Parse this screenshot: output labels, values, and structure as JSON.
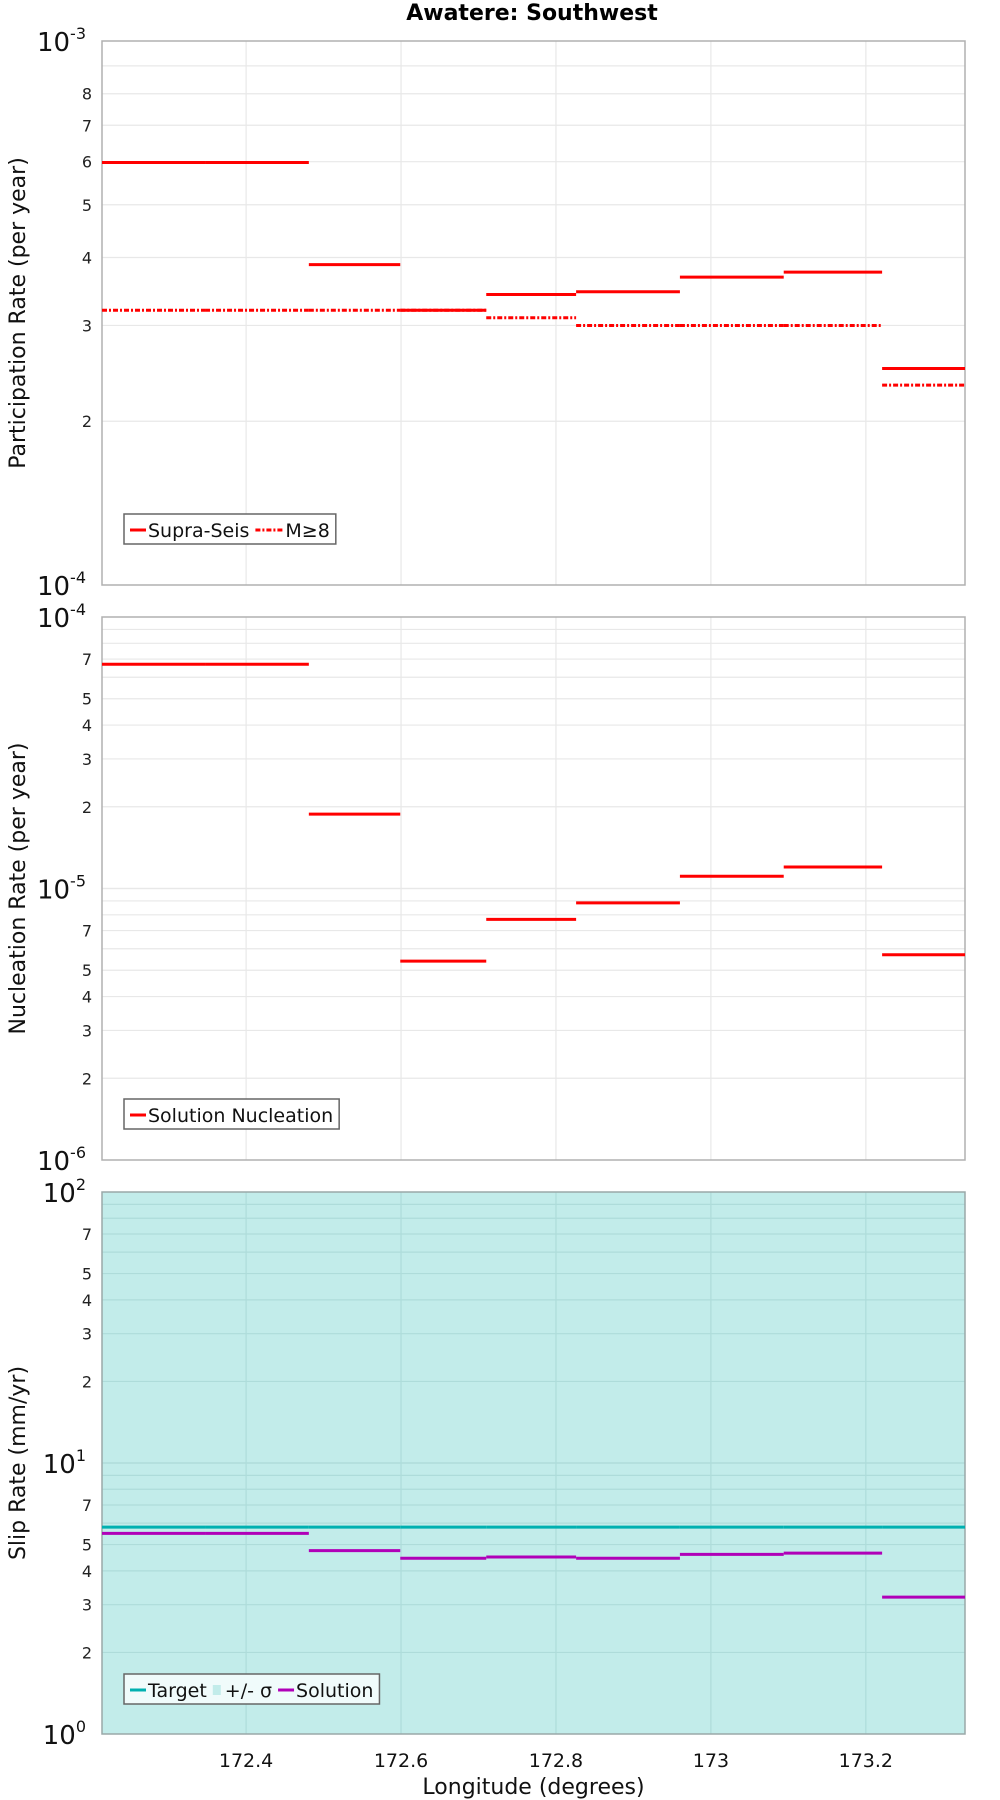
{
  "title": "Awatere: Southwest",
  "colors": {
    "solution_red": "#ff0000",
    "target_teal": "#00b0b0",
    "sigma_fill": "#c2ecea",
    "solution_purple": "#b000b8",
    "grid": "#e8e8e8",
    "frame": "#b0b0b0"
  },
  "x_axis": {
    "label": "Longitude (degrees)",
    "range": [
      172.214,
      173.328
    ],
    "ticks": [
      172.4,
      172.6,
      172.8,
      173.0,
      173.2
    ],
    "tick_labels": [
      "172.4",
      "172.6",
      "172.8",
      "173",
      "173.2"
    ]
  },
  "section_boundaries": [
    172.214,
    172.347,
    172.481,
    172.599,
    172.71,
    172.826,
    172.96,
    173.094,
    173.221,
    173.328
  ],
  "chart_data": [
    {
      "type": "line",
      "subtype": "step",
      "title": "Awatere: Southwest",
      "xlabel": "",
      "ylabel": "Participation Rate (per year)",
      "yscale": "log",
      "ylim": [
        0.0001,
        0.001
      ],
      "y_major_labels": [
        "10^-4",
        "10^-3"
      ],
      "y_minor_labels": [
        "2",
        "3",
        "4",
        "5",
        "6",
        "7",
        "8"
      ],
      "grid": true,
      "legend_position": "lower-left",
      "series": [
        {
          "name": "Supra-Seis",
          "style": "solid",
          "color": "#ff0000",
          "values": [
            0.000598,
            0.000598,
            0.000388,
            0.00032,
            0.000342,
            0.000346,
            0.000368,
            0.000376,
            0.00025
          ]
        },
        {
          "name": "M≥8",
          "style": "dash-dot",
          "color": "#ff0000",
          "values": [
            0.00032,
            0.00032,
            0.00032,
            0.00032,
            0.00031,
            0.0003,
            0.0003,
            0.0003,
            0.000233
          ]
        }
      ]
    },
    {
      "type": "line",
      "subtype": "step",
      "xlabel": "",
      "ylabel": "Nucleation Rate (per year)",
      "yscale": "log",
      "ylim": [
        1e-06,
        0.0001
      ],
      "y_major_labels": [
        "10^-6",
        "10^-5",
        "10^-4"
      ],
      "y_minor_labels": [
        "2",
        "3",
        "4",
        "5",
        "7"
      ],
      "grid": true,
      "legend_position": "lower-left",
      "series": [
        {
          "name": "Solution Nucleation",
          "style": "solid",
          "color": "#ff0000",
          "values": [
            6.7e-05,
            6.7e-05,
            1.88e-05,
            5.4e-06,
            7.7e-06,
            8.85e-06,
            1.11e-05,
            1.2e-05,
            5.7e-06
          ]
        }
      ]
    },
    {
      "type": "line",
      "subtype": "step",
      "xlabel": "Longitude (degrees)",
      "ylabel": "Slip Rate (mm/yr)",
      "yscale": "log",
      "ylim": [
        1,
        100
      ],
      "y_major_labels": [
        "10^0",
        "10^1",
        "10^2"
      ],
      "y_minor_labels": [
        "2",
        "3",
        "4",
        "5",
        "7"
      ],
      "grid": true,
      "legend_position": "lower-left",
      "series": [
        {
          "name": "Target",
          "style": "solid",
          "color": "#00b0b0",
          "values": [
            5.8,
            5.8,
            5.8,
            5.8,
            5.8,
            5.8,
            5.8,
            5.8,
            5.8
          ]
        },
        {
          "name": "+/- σ",
          "style": "fill",
          "color": "#c2ecea",
          "lower": 1,
          "upper": 100
        },
        {
          "name": "Solution",
          "style": "solid",
          "color": "#b000b8",
          "values": [
            5.5,
            5.5,
            4.75,
            4.45,
            4.5,
            4.45,
            4.6,
            4.65,
            3.2
          ]
        }
      ]
    }
  ]
}
